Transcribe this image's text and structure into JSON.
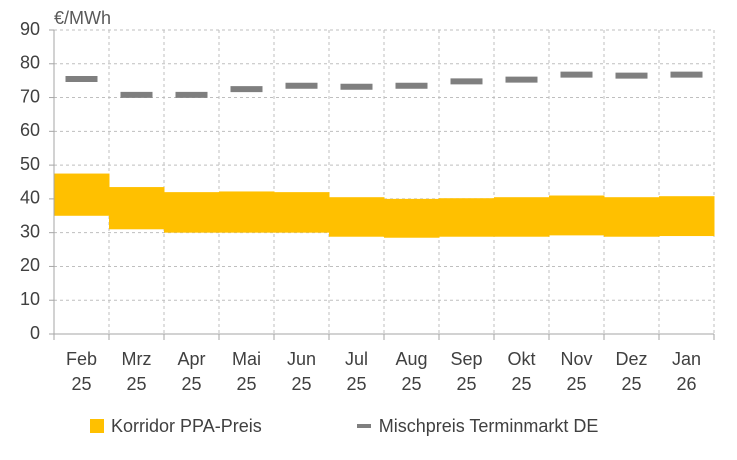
{
  "chart_data": {
    "type": "range-bar",
    "y_unit": "€/MWh",
    "ylim": [
      0,
      90
    ],
    "yticks": [
      0,
      10,
      20,
      30,
      40,
      50,
      60,
      70,
      80,
      90
    ],
    "grid": true,
    "categories": [
      {
        "top": "Feb",
        "bottom": "25"
      },
      {
        "top": "Mrz",
        "bottom": "25"
      },
      {
        "top": "Apr",
        "bottom": "25"
      },
      {
        "top": "Mai",
        "bottom": "25"
      },
      {
        "top": "Jun",
        "bottom": "25"
      },
      {
        "top": "Jul",
        "bottom": "25"
      },
      {
        "top": "Aug",
        "bottom": "25"
      },
      {
        "top": "Sep",
        "bottom": "25"
      },
      {
        "top": "Okt",
        "bottom": "25"
      },
      {
        "top": "Nov",
        "bottom": "25"
      },
      {
        "top": "Dez",
        "bottom": "25"
      },
      {
        "top": "Jan",
        "bottom": "26"
      }
    ],
    "series": [
      {
        "name": "Korridor PPA-Preis",
        "kind": "range",
        "color": "#FFC000",
        "low": [
          35.0,
          31.0,
          30.0,
          30.0,
          30.0,
          28.8,
          28.5,
          28.8,
          28.8,
          29.2,
          28.8,
          29.0
        ],
        "high": [
          47.5,
          43.5,
          42.0,
          42.2,
          42.0,
          40.5,
          40.0,
          40.2,
          40.5,
          41.0,
          40.5,
          40.8
        ]
      },
      {
        "name": "Mischpreis Terminmarkt DE",
        "kind": "marker",
        "color": "#7F7F7F",
        "values": [
          75.5,
          70.8,
          70.8,
          72.5,
          73.5,
          73.2,
          73.5,
          74.8,
          75.3,
          76.8,
          76.5,
          76.8
        ]
      }
    ],
    "legend_position": "bottom"
  }
}
